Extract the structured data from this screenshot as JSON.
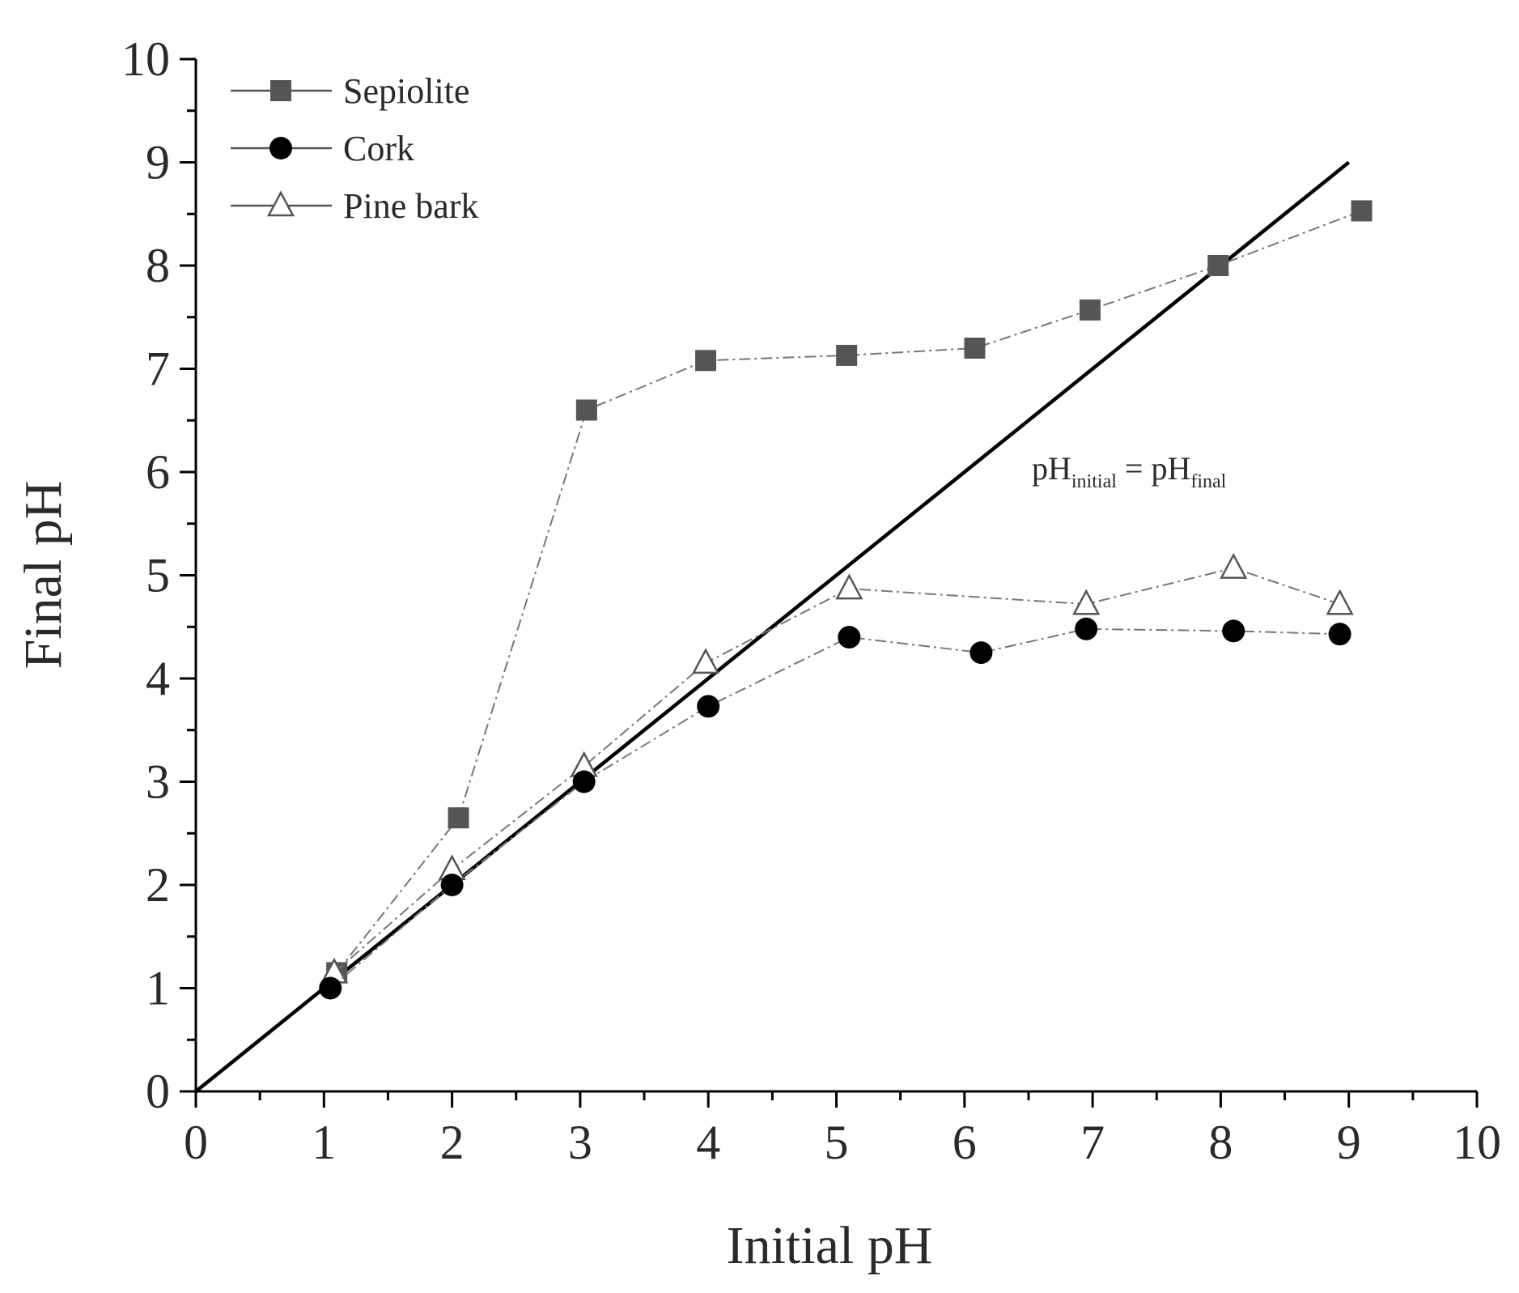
{
  "chart_data": {
    "type": "line",
    "title": "",
    "xlabel": "Initial pH",
    "ylabel": "Final pH",
    "xlim": [
      0,
      10
    ],
    "ylim": [
      0,
      10
    ],
    "xticks": [
      0,
      1,
      2,
      3,
      4,
      5,
      6,
      7,
      8,
      9,
      10
    ],
    "yticks": [
      0,
      1,
      2,
      3,
      4,
      5,
      6,
      7,
      8,
      9,
      10
    ],
    "grid": false,
    "legend_position": "top-left",
    "series": [
      {
        "name": "Sepiolite",
        "marker": "square-filled",
        "color": "#555555",
        "x": [
          1.1,
          2.05,
          3.05,
          3.98,
          5.08,
          6.08,
          6.98,
          7.98,
          9.1
        ],
        "y": [
          1.15,
          2.65,
          6.6,
          7.08,
          7.13,
          7.2,
          7.57,
          8.0,
          8.53
        ]
      },
      {
        "name": "Cork",
        "marker": "circle-filled",
        "color": "#000000",
        "x": [
          1.05,
          2.0,
          3.03,
          4.0,
          5.1,
          6.13,
          6.95,
          8.1,
          8.93
        ],
        "y": [
          1.0,
          2.0,
          3.0,
          3.73,
          4.4,
          4.25,
          4.48,
          4.46,
          4.43
        ]
      },
      {
        "name": "Pine bark",
        "marker": "triangle-open",
        "color": "#555555",
        "x": [
          1.08,
          2.0,
          3.03,
          3.98,
          5.1,
          6.95,
          8.1,
          8.93
        ],
        "y": [
          1.15,
          2.15,
          3.15,
          4.15,
          4.87,
          4.72,
          5.07,
          4.72
        ]
      }
    ],
    "reference_line": {
      "label_main": "pH",
      "label_sub1": "initial",
      "label_eq": " = pH",
      "label_sub2": "final",
      "x": [
        0,
        9
      ],
      "y": [
        0,
        9
      ]
    }
  }
}
